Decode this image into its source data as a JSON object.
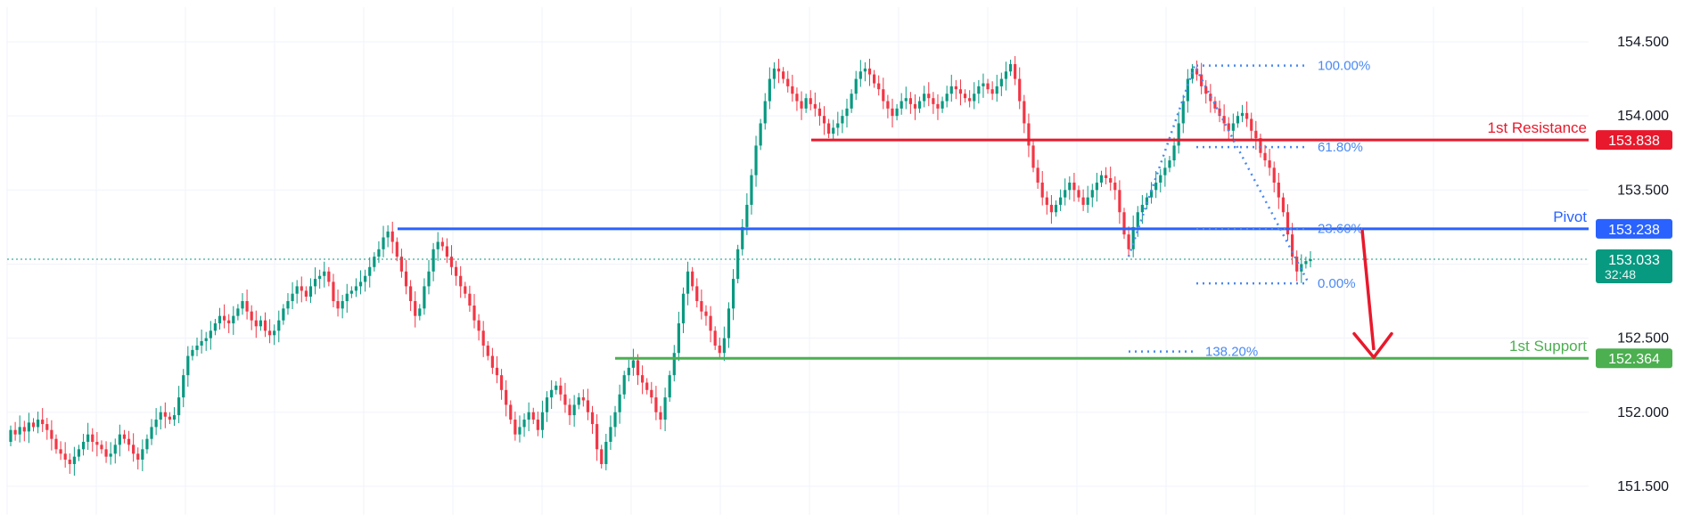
{
  "chart_data": {
    "type": "candlestick",
    "title": "",
    "xlabel": "",
    "ylabel": "",
    "ylim": [
      151.4,
      154.6
    ],
    "grid": true,
    "y_ticks": [
      151.5,
      152.0,
      152.5,
      153.0,
      153.5,
      154.0,
      154.5
    ],
    "y_tick_labels": [
      "151.500",
      "152.000",
      "152.500",
      "153.000",
      "153.500",
      "154.000",
      "154.500"
    ],
    "levels": [
      {
        "name": "1st Resistance",
        "value": 153.838,
        "label": "153.838",
        "color": "#e8192c"
      },
      {
        "name": "Pivot",
        "value": 153.238,
        "label": "153.238",
        "color": "#2962ff"
      },
      {
        "name": "1st Support",
        "value": 152.364,
        "label": "152.364",
        "color": "#4caf50"
      }
    ],
    "current_price": {
      "value": 153.033,
      "label": "153.033",
      "countdown": "32:48",
      "color": "#089981"
    },
    "fibonacci": [
      {
        "ratio_label": "100.00%",
        "price": 154.34
      },
      {
        "ratio_label": "61.80%",
        "price": 153.79
      },
      {
        "ratio_label": "23.60%",
        "price": 153.24
      },
      {
        "ratio_label": "0.00%",
        "price": 152.87
      },
      {
        "ratio_label": "138.20%",
        "price": 152.41
      }
    ],
    "colors": {
      "up": "#089981",
      "down": "#f23645",
      "grid": "#f0f3fa",
      "fib": "#4a89f3",
      "arrow": "#e8192c"
    },
    "candles": {
      "open": [
        151.8,
        151.88,
        151.85,
        151.9,
        151.87,
        151.93,
        151.9,
        151.95,
        151.92,
        151.88,
        151.82,
        151.75,
        151.72,
        151.68,
        151.65,
        151.7,
        151.75,
        151.8,
        151.85,
        151.8,
        151.78,
        151.75,
        151.7,
        151.72,
        151.78,
        151.85,
        151.82,
        151.78,
        151.72,
        151.68,
        151.75,
        151.82,
        151.9,
        151.95,
        152.0,
        151.97,
        151.95,
        151.98,
        152.1,
        152.25,
        152.38,
        152.42,
        152.45,
        152.48,
        152.5,
        152.55,
        152.6,
        152.65,
        152.62,
        152.6,
        152.65,
        152.7,
        152.75,
        152.68,
        152.62,
        152.58,
        152.62,
        152.55,
        152.52,
        152.55,
        152.62,
        152.7,
        152.75,
        152.8,
        152.85,
        152.82,
        152.78,
        152.85,
        152.9,
        152.92,
        152.95,
        152.88,
        152.75,
        152.7,
        152.75,
        152.8,
        152.82,
        152.85,
        152.88,
        152.92,
        152.98,
        153.05,
        153.1,
        153.18,
        153.22,
        153.15,
        153.05,
        152.95,
        152.85,
        152.75,
        152.65,
        152.7,
        152.85,
        152.95,
        153.1,
        153.15,
        153.12,
        153.05,
        152.98,
        152.92,
        152.85,
        152.8,
        152.72,
        152.62,
        152.55,
        152.45,
        152.38,
        152.3,
        152.25,
        152.15,
        152.05,
        151.95,
        151.85,
        151.9,
        151.95,
        152.0,
        151.95,
        151.88,
        152.0,
        152.1,
        152.15,
        152.18,
        152.12,
        152.05,
        151.98,
        152.05,
        152.1,
        152.08,
        152.0,
        151.92,
        151.75,
        151.65,
        151.8,
        151.9,
        152.0,
        152.12,
        152.25,
        152.3,
        152.35,
        152.25,
        152.2,
        152.15,
        152.1,
        152.0,
        151.95,
        152.1,
        152.25,
        152.4,
        152.6,
        152.8,
        152.95,
        152.85,
        152.75,
        152.68,
        152.65,
        152.55,
        152.45,
        152.4,
        152.5,
        152.7,
        152.9,
        153.1,
        153.25,
        153.4,
        153.6,
        153.8,
        153.95,
        154.1,
        154.25,
        154.32,
        154.3,
        154.25,
        154.2,
        154.15,
        154.1,
        154.05,
        154.12,
        154.08,
        154.05,
        154.0,
        153.95,
        153.88,
        153.92,
        153.95,
        154.0,
        154.05,
        154.15,
        154.25,
        154.3,
        154.32,
        154.28,
        154.22,
        154.18,
        154.1,
        154.05,
        154.0,
        154.05,
        154.1,
        154.12,
        154.08,
        154.05,
        154.1,
        154.15,
        154.12,
        154.08,
        154.05,
        154.1,
        154.15,
        154.2,
        154.18,
        154.15,
        154.12,
        154.1,
        154.15,
        154.2,
        154.22,
        154.18,
        154.15,
        154.2,
        154.25,
        154.3,
        154.35,
        154.25,
        154.1,
        153.95,
        153.8,
        153.65,
        153.55,
        153.45,
        153.4,
        153.35,
        153.4,
        153.45,
        153.5,
        153.55,
        153.5,
        153.45,
        153.4,
        153.45,
        153.5,
        153.55,
        153.6,
        153.58,
        153.55,
        153.5,
        153.35,
        153.2,
        153.1,
        153.25,
        153.35,
        153.4,
        153.45,
        153.5,
        153.55,
        153.6,
        153.65,
        153.7,
        153.8,
        153.95,
        154.1,
        154.25,
        154.32,
        154.28,
        154.2,
        154.15,
        154.1,
        154.05,
        154.0,
        153.95,
        153.9,
        153.95,
        154.0,
        154.02,
        153.98,
        153.9,
        153.85,
        153.75,
        153.7,
        153.65,
        153.55,
        153.45,
        153.35,
        153.2,
        153.05,
        152.95,
        153.0,
        153.02
      ],
      "close": [
        151.88,
        151.85,
        151.9,
        151.87,
        151.93,
        151.9,
        151.95,
        151.92,
        151.88,
        151.82,
        151.75,
        151.72,
        151.68,
        151.65,
        151.7,
        151.75,
        151.8,
        151.85,
        151.8,
        151.78,
        151.75,
        151.7,
        151.72,
        151.78,
        151.85,
        151.82,
        151.78,
        151.72,
        151.68,
        151.75,
        151.82,
        151.9,
        151.95,
        152.0,
        151.97,
        151.95,
        151.98,
        152.1,
        152.25,
        152.38,
        152.42,
        152.45,
        152.48,
        152.5,
        152.55,
        152.6,
        152.65,
        152.62,
        152.6,
        152.65,
        152.7,
        152.75,
        152.68,
        152.62,
        152.58,
        152.62,
        152.55,
        152.52,
        152.55,
        152.62,
        152.7,
        152.75,
        152.8,
        152.85,
        152.82,
        152.78,
        152.85,
        152.9,
        152.92,
        152.95,
        152.88,
        152.75,
        152.7,
        152.75,
        152.8,
        152.82,
        152.85,
        152.88,
        152.92,
        152.98,
        153.05,
        153.1,
        153.18,
        153.22,
        153.15,
        153.05,
        152.95,
        152.85,
        152.75,
        152.65,
        152.7,
        152.85,
        152.95,
        153.1,
        153.15,
        153.12,
        153.05,
        152.98,
        152.92,
        152.85,
        152.8,
        152.72,
        152.62,
        152.55,
        152.45,
        152.38,
        152.3,
        152.25,
        152.15,
        152.05,
        151.95,
        151.85,
        151.9,
        151.95,
        152.0,
        151.95,
        151.88,
        152.0,
        152.1,
        152.15,
        152.18,
        152.12,
        152.05,
        151.98,
        152.05,
        152.1,
        152.08,
        152.0,
        151.92,
        151.75,
        151.65,
        151.8,
        151.9,
        152.0,
        152.12,
        152.25,
        152.3,
        152.35,
        152.25,
        152.2,
        152.15,
        152.1,
        152.0,
        151.95,
        152.1,
        152.25,
        152.4,
        152.6,
        152.8,
        152.95,
        152.85,
        152.75,
        152.68,
        152.65,
        152.55,
        152.45,
        152.4,
        152.5,
        152.7,
        152.9,
        153.1,
        153.25,
        153.4,
        153.6,
        153.8,
        153.95,
        154.1,
        154.25,
        154.32,
        154.3,
        154.25,
        154.2,
        154.15,
        154.1,
        154.05,
        154.12,
        154.08,
        154.05,
        154.0,
        153.95,
        153.88,
        153.92,
        153.95,
        154.0,
        154.05,
        154.15,
        154.25,
        154.3,
        154.32,
        154.28,
        154.22,
        154.18,
        154.1,
        154.05,
        154.0,
        154.05,
        154.1,
        154.12,
        154.08,
        154.05,
        154.1,
        154.15,
        154.12,
        154.08,
        154.05,
        154.1,
        154.15,
        154.2,
        154.18,
        154.15,
        154.12,
        154.1,
        154.15,
        154.2,
        154.22,
        154.18,
        154.15,
        154.2,
        154.25,
        154.3,
        154.35,
        154.25,
        154.1,
        153.95,
        153.8,
        153.65,
        153.55,
        153.45,
        153.4,
        153.35,
        153.4,
        153.45,
        153.5,
        153.55,
        153.5,
        153.45,
        153.4,
        153.45,
        153.5,
        153.55,
        153.6,
        153.58,
        153.55,
        153.5,
        153.35,
        153.2,
        153.1,
        153.25,
        153.35,
        153.4,
        153.45,
        153.5,
        153.55,
        153.6,
        153.65,
        153.7,
        153.8,
        153.95,
        154.1,
        154.25,
        154.32,
        154.28,
        154.2,
        154.15,
        154.1,
        154.05,
        154.0,
        153.95,
        153.9,
        153.95,
        154.0,
        154.02,
        153.98,
        153.9,
        153.85,
        153.75,
        153.7,
        153.65,
        153.55,
        153.45,
        153.35,
        153.2,
        153.05,
        152.95,
        153.0,
        153.02,
        153.033
      ]
    }
  }
}
